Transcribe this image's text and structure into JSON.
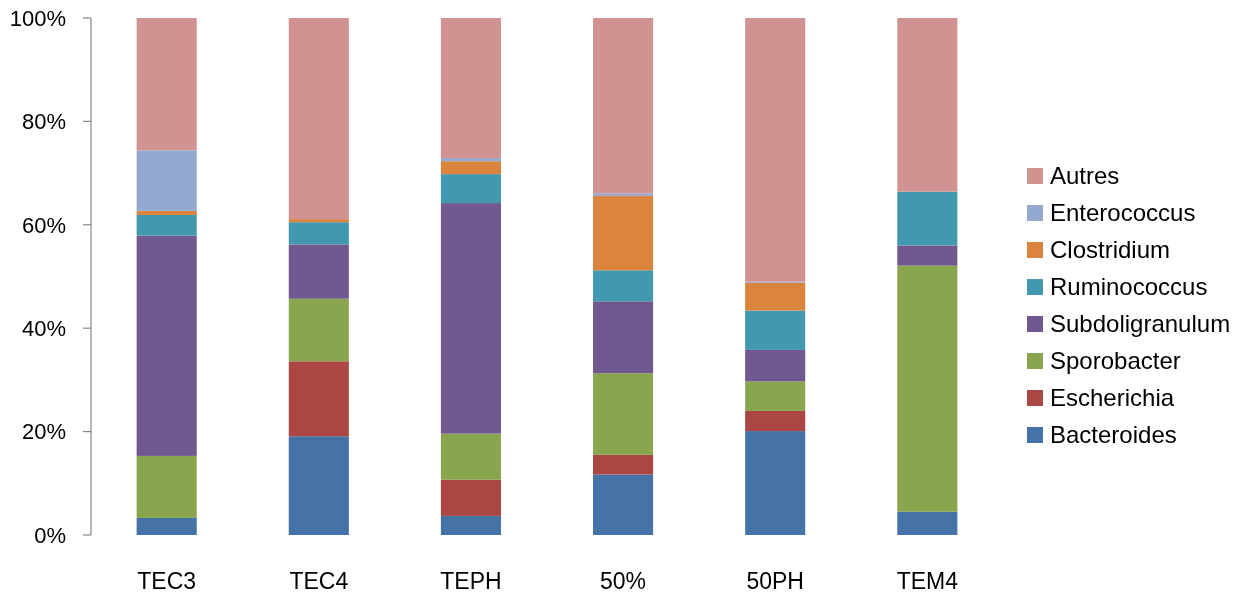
{
  "chart_data": {
    "type": "bar",
    "stacked": true,
    "legend": "right",
    "grid": false,
    "categories": [
      "TEC3",
      "TEC4",
      "TEPH",
      "50%",
      "50PH",
      "TEM4"
    ],
    "ylim": [
      0,
      100
    ],
    "yticks": [
      {
        "value": 0,
        "label": "0%"
      },
      {
        "value": 20,
        "label": "20%"
      },
      {
        "value": 40,
        "label": "40%"
      },
      {
        "value": 60,
        "label": "60%"
      },
      {
        "value": 80,
        "label": "80%"
      },
      {
        "value": 100,
        "label": "100%"
      }
    ],
    "series": [
      {
        "name": "Bacteroides",
        "color": "#4572a7",
        "values": [
          3.3,
          19.1,
          3.7,
          11.7,
          20.1,
          4.5
        ]
      },
      {
        "name": "Escherichia",
        "color": "#aa4643",
        "values": [
          null,
          14.5,
          7.0,
          3.8,
          3.9,
          null
        ]
      },
      {
        "name": "Sporobacter",
        "color": "#89a54e",
        "values": [
          12.0,
          12.1,
          8.9,
          15.8,
          5.7,
          47.6
        ]
      },
      {
        "name": "Subdoligranulum",
        "color": "#71588f",
        "values": [
          42.6,
          10.5,
          44.6,
          13.9,
          6.1,
          3.9
        ]
      },
      {
        "name": "Ruminococcus",
        "color": "#4198af",
        "values": [
          4.0,
          4.3,
          5.6,
          6.0,
          7.6,
          10.4
        ]
      },
      {
        "name": "Clostridium",
        "color": "#db843d",
        "values": [
          0.8,
          0.6,
          2.5,
          14.4,
          5.4,
          null
        ]
      },
      {
        "name": "Enterococcus",
        "color": "#93a9cf",
        "values": [
          11.7,
          null,
          0.6,
          0.5,
          0.2,
          null
        ]
      },
      {
        "name": "Autres",
        "color": "#d19392",
        "values": [
          25.6,
          38.9,
          27.1,
          33.9,
          51.0,
          33.6
        ]
      }
    ]
  }
}
